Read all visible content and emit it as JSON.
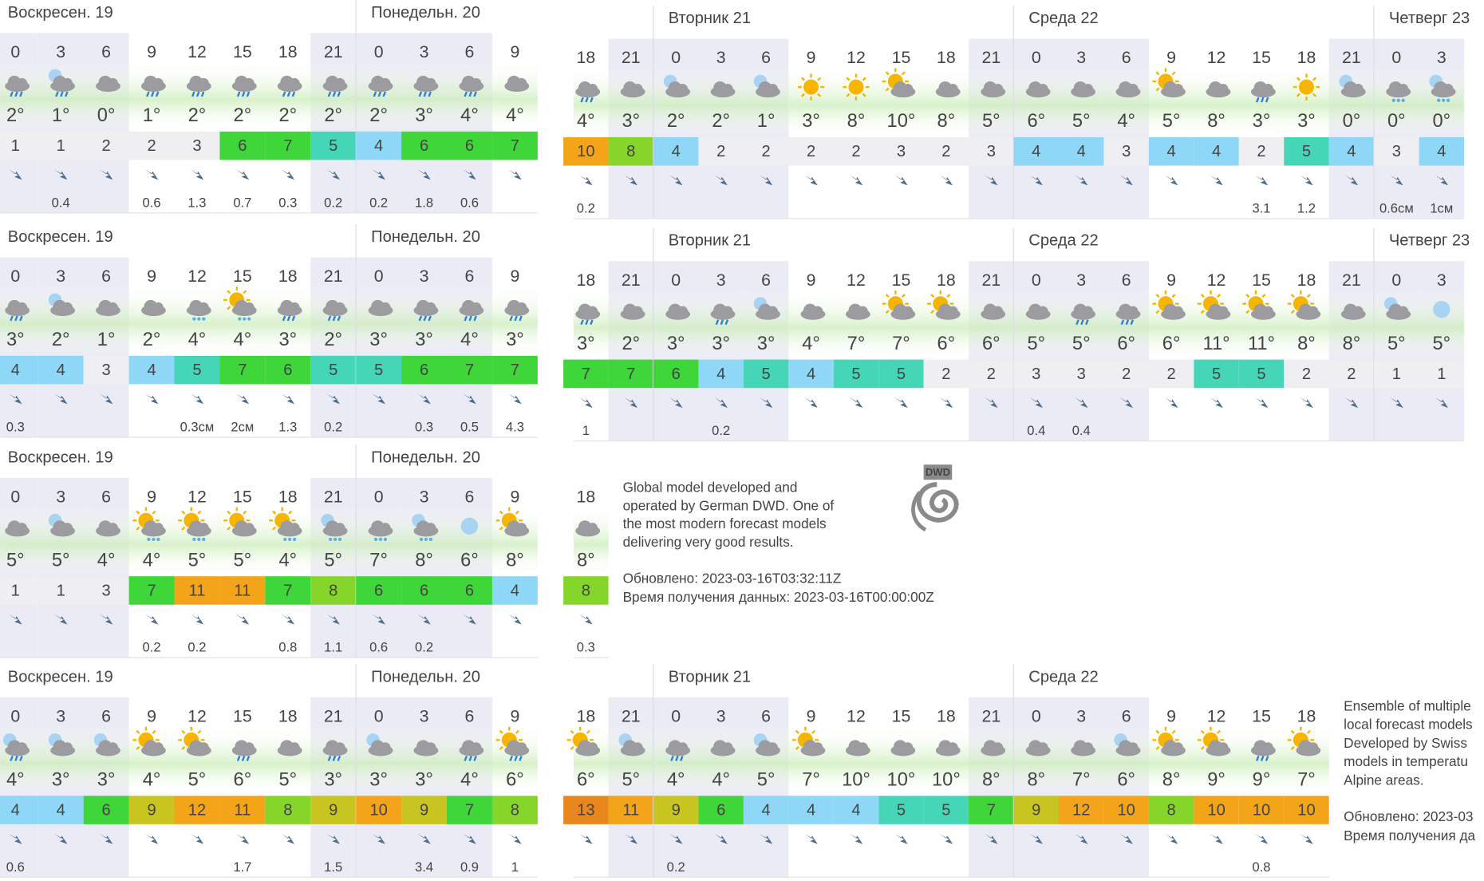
{
  "left_panels": [
    {
      "days": [
        {
          "label": "Воскресен. 19",
          "columns": [
            {
              "hour": 0,
              "temp": "2°",
              "wind": 1,
              "icon": "rain"
            },
            {
              "hour": 3,
              "temp": "1°",
              "wind": 1,
              "precip": 0.4,
              "icon": "moon-rain"
            },
            {
              "hour": 6,
              "temp": "0°",
              "wind": 2,
              "icon": "cloud"
            },
            {
              "hour": 9,
              "temp": "1°",
              "wind": 2,
              "precip": 0.6,
              "icon": "rain"
            },
            {
              "hour": 12,
              "temp": "2°",
              "wind": 3,
              "precip": 1.3,
              "icon": "rain"
            },
            {
              "hour": 15,
              "temp": "2°",
              "wind": 6,
              "precip": 0.7,
              "icon": "rain"
            },
            {
              "hour": 18,
              "temp": "2°",
              "wind": 7,
              "precip": 0.3,
              "icon": "rain"
            },
            {
              "hour": 21,
              "temp": "2°",
              "wind": 5,
              "precip": 0.2,
              "icon": "rain"
            }
          ]
        },
        {
          "label": "Понедельн. 20",
          "columns": [
            {
              "hour": 0,
              "temp": "2°",
              "wind": 4,
              "precip": 0.2,
              "icon": "rain"
            },
            {
              "hour": 3,
              "temp": "3°",
              "wind": 6,
              "precip": 1.8,
              "icon": "rain"
            },
            {
              "hour": 6,
              "temp": "4°",
              "wind": 6,
              "precip": 0.6,
              "icon": "rain"
            },
            {
              "hour": 9,
              "temp": "4°",
              "wind": 7,
              "icon": "cloud"
            }
          ]
        }
      ]
    },
    {
      "days": [
        {
          "label": "Воскресен. 19",
          "columns": [
            {
              "hour": 0,
              "temp": "3°",
              "wind": 4,
              "precip": 0.3,
              "icon": "rain"
            },
            {
              "hour": 3,
              "temp": "2°",
              "wind": 4,
              "icon": "moon-cloud"
            },
            {
              "hour": 6,
              "temp": "1°",
              "wind": 3,
              "icon": "cloud"
            },
            {
              "hour": 9,
              "temp": "2°",
              "wind": 4,
              "icon": "cloud"
            },
            {
              "hour": 12,
              "temp": "4°",
              "wind": 5,
              "precip": {
                "value": 0.3,
                "label": "0.3см"
              },
              "icon": "snow"
            },
            {
              "hour": 15,
              "temp": "4°",
              "wind": 7,
              "precip": {
                "value": 2,
                "label": "2см"
              },
              "icon": "sun-snow"
            },
            {
              "hour": 18,
              "temp": "3°",
              "wind": 6,
              "precip": 1.3,
              "icon": "rain"
            },
            {
              "hour": 21,
              "temp": "2°",
              "wind": 5,
              "precip": 0.2,
              "icon": "rain"
            }
          ]
        },
        {
          "label": "Понедельн. 20",
          "columns": [
            {
              "hour": 0,
              "temp": "3°",
              "wind": 5,
              "icon": "cloud"
            },
            {
              "hour": 3,
              "temp": "3°",
              "wind": 6,
              "precip": 0.3,
              "icon": "rain"
            },
            {
              "hour": 6,
              "temp": "4°",
              "wind": 7,
              "precip": 0.5,
              "icon": "rain"
            },
            {
              "hour": 9,
              "temp": "3°",
              "wind": 7,
              "precip": 4.3,
              "icon": "rain"
            }
          ]
        }
      ]
    },
    {
      "days": [
        {
          "label": "Воскресен. 19",
          "columns": [
            {
              "hour": 0,
              "temp": "5°",
              "wind": 1,
              "icon": "cloud"
            },
            {
              "hour": 3,
              "temp": "5°",
              "wind": 1,
              "icon": "moon-cloud"
            },
            {
              "hour": 6,
              "temp": "4°",
              "wind": 3,
              "icon": "cloud"
            },
            {
              "hour": 9,
              "temp": "4°",
              "wind": 7,
              "precip": 0.2,
              "icon": "sun-snow"
            },
            {
              "hour": 12,
              "temp": "5°",
              "wind": 11,
              "precip": 0.2,
              "icon": "sun-snow"
            },
            {
              "hour": 15,
              "temp": "5°",
              "wind": 11,
              "icon": "sun-cloud"
            },
            {
              "hour": 18,
              "temp": "4°",
              "wind": 7,
              "precip": 0.8,
              "icon": "sun-snow"
            },
            {
              "hour": 21,
              "temp": "5°",
              "wind": 8,
              "precip": 1.1,
              "icon": "moon-snow"
            }
          ]
        },
        {
          "label": "Понедельн. 20",
          "columns": [
            {
              "hour": 0,
              "temp": "7°",
              "wind": 6,
              "precip": 0.6,
              "icon": "snow"
            },
            {
              "hour": 3,
              "temp": "8°",
              "wind": 6,
              "precip": 0.2,
              "icon": "moon-snow"
            },
            {
              "hour": 6,
              "temp": "6°",
              "wind": 6,
              "icon": "moon"
            },
            {
              "hour": 9,
              "temp": "8°",
              "wind": 4,
              "icon": "sun-cloud"
            }
          ]
        }
      ]
    },
    {
      "days": [
        {
          "label": "Воскресен. 19",
          "columns": [
            {
              "hour": 0,
              "temp": "4°",
              "wind": 4,
              "precip": 0.6,
              "icon": "moon-rain"
            },
            {
              "hour": 3,
              "temp": "3°",
              "wind": 4,
              "icon": "moon-cloud"
            },
            {
              "hour": 6,
              "temp": "3°",
              "wind": 6,
              "icon": "moon-cloud"
            },
            {
              "hour": 9,
              "temp": "4°",
              "wind": 9,
              "icon": "sun-cloud"
            },
            {
              "hour": 12,
              "temp": "5°",
              "wind": 12,
              "icon": "sun-cloud"
            },
            {
              "hour": 15,
              "temp": "6°",
              "wind": 11,
              "precip": 1.7,
              "icon": "rain"
            },
            {
              "hour": 18,
              "temp": "5°",
              "wind": 8,
              "icon": "cloud"
            },
            {
              "hour": 21,
              "temp": "3°",
              "wind": 9,
              "precip": 1.5,
              "icon": "rain"
            }
          ]
        },
        {
          "label": "Понедельн. 20",
          "columns": [
            {
              "hour": 0,
              "temp": "3°",
              "wind": 10,
              "icon": "moon-cloud"
            },
            {
              "hour": 3,
              "temp": "3°",
              "wind": 9,
              "precip": 3.4,
              "icon": "cloud"
            },
            {
              "hour": 6,
              "temp": "4°",
              "wind": 7,
              "precip": 0.9,
              "icon": "rain"
            },
            {
              "hour": 9,
              "temp": "6°",
              "wind": 8,
              "precip": 1,
              "icon": "sun-rain"
            }
          ]
        }
      ]
    }
  ],
  "right_panels": [
    {
      "days": [
        {
          "label": null,
          "columns": [
            {
              "hour": 18,
              "temp": "4°",
              "wind": 10,
              "precip": 0.2,
              "icon": "rain"
            },
            {
              "hour": 21,
              "temp": "3°",
              "wind": 8,
              "icon": "cloud"
            }
          ]
        },
        {
          "label": "Вторник 21",
          "columns": [
            {
              "hour": 0,
              "temp": "2°",
              "wind": 4,
              "icon": "moon-cloud"
            },
            {
              "hour": 3,
              "temp": "2°",
              "wind": 2,
              "icon": "cloud"
            },
            {
              "hour": 6,
              "temp": "1°",
              "wind": 2,
              "icon": "moon-cloud"
            },
            {
              "hour": 9,
              "temp": "3°",
              "wind": 2,
              "icon": "sun"
            },
            {
              "hour": 12,
              "temp": "8°",
              "wind": 2,
              "icon": "sun"
            },
            {
              "hour": 15,
              "temp": "10°",
              "wind": 3,
              "icon": "sun-cloud"
            },
            {
              "hour": 18,
              "temp": "8°",
              "wind": 2,
              "icon": "cloud"
            },
            {
              "hour": 21,
              "temp": "5°",
              "wind": 3,
              "icon": "cloud"
            }
          ]
        },
        {
          "label": "Среда 22",
          "columns": [
            {
              "hour": 0,
              "temp": "6°",
              "wind": 4,
              "icon": "cloud"
            },
            {
              "hour": 3,
              "temp": "5°",
              "wind": 4,
              "icon": "cloud"
            },
            {
              "hour": 6,
              "temp": "4°",
              "wind": 3,
              "icon": "cloud"
            },
            {
              "hour": 9,
              "temp": "5°",
              "wind": 4,
              "icon": "sun-cloud"
            },
            {
              "hour": 12,
              "temp": "8°",
              "wind": 4,
              "icon": "cloud"
            },
            {
              "hour": 15,
              "temp": "3°",
              "wind": 2,
              "precip": 3.1,
              "icon": "rain"
            },
            {
              "hour": 18,
              "temp": "3°",
              "wind": 5,
              "precip": 1.2,
              "icon": "sun"
            },
            {
              "hour": 21,
              "temp": "0°",
              "wind": 4,
              "icon": "moon-cloud"
            }
          ]
        },
        {
          "label": "Четверг 23",
          "columns": [
            {
              "hour": 0,
              "temp": "0°",
              "wind": 3,
              "precip": {
                "value": 0.6,
                "label": "0.6см"
              },
              "icon": "snow"
            },
            {
              "hour": 3,
              "temp": "0°",
              "wind": 4,
              "precip": {
                "value": 1,
                "label": "1см"
              },
              "icon": "moon-snow"
            }
          ]
        }
      ]
    },
    {
      "days": [
        {
          "label": null,
          "columns": [
            {
              "hour": 18,
              "temp": "3°",
              "wind": 7,
              "precip": 1,
              "icon": "rain"
            },
            {
              "hour": 21,
              "temp": "2°",
              "wind": 7,
              "icon": "cloud"
            }
          ]
        },
        {
          "label": "Вторник 21",
          "columns": [
            {
              "hour": 0,
              "temp": "3°",
              "wind": 6,
              "icon": "cloud"
            },
            {
              "hour": 3,
              "temp": "3°",
              "wind": 4,
              "precip": 0.2,
              "icon": "rain"
            },
            {
              "hour": 6,
              "temp": "3°",
              "wind": 5,
              "icon": "moon-cloud"
            },
            {
              "hour": 9,
              "temp": "4°",
              "wind": 4,
              "icon": "cloud"
            },
            {
              "hour": 12,
              "temp": "7°",
              "wind": 5,
              "icon": "cloud"
            },
            {
              "hour": 15,
              "temp": "7°",
              "wind": 5,
              "icon": "sun-cloud"
            },
            {
              "hour": 18,
              "temp": "6°",
              "wind": 2,
              "icon": "sun-cloud"
            },
            {
              "hour": 21,
              "temp": "6°",
              "wind": 2,
              "icon": "cloud"
            }
          ]
        },
        {
          "label": "Среда 22",
          "columns": [
            {
              "hour": 0,
              "temp": "5°",
              "wind": 3,
              "precip": 0.4,
              "icon": "cloud"
            },
            {
              "hour": 3,
              "temp": "5°",
              "wind": 3,
              "precip": 0.4,
              "icon": "rain"
            },
            {
              "hour": 6,
              "temp": "6°",
              "wind": 2,
              "icon": "rain"
            },
            {
              "hour": 9,
              "temp": "6°",
              "wind": 2,
              "icon": "sun-cloud"
            },
            {
              "hour": 12,
              "temp": "11°",
              "wind": 5,
              "icon": "sun-cloud"
            },
            {
              "hour": 15,
              "temp": "11°",
              "wind": 5,
              "icon": "sun-cloud"
            },
            {
              "hour": 18,
              "temp": "8°",
              "wind": 2,
              "icon": "sun-cloud"
            },
            {
              "hour": 21,
              "temp": "8°",
              "wind": 2,
              "icon": "cloud"
            }
          ]
        },
        {
          "label": "Четверг 23",
          "columns": [
            {
              "hour": 0,
              "temp": "5°",
              "wind": 1,
              "icon": "moon-cloud"
            },
            {
              "hour": 3,
              "temp": "5°",
              "wind": 1,
              "icon": "moon"
            }
          ]
        }
      ]
    },
    {
      "days": [
        {
          "label": null,
          "columns": [
            {
              "hour": 18,
              "temp": "8°",
              "wind": 8,
              "precip": 0.3,
              "icon": "cloud"
            }
          ]
        }
      ]
    },
    {
      "days": [
        {
          "label": null,
          "columns": [
            {
              "hour": 18,
              "temp": "6°",
              "wind": 13,
              "icon": "sun-cloud"
            },
            {
              "hour": 21,
              "temp": "5°",
              "wind": 11,
              "icon": "moon-cloud"
            }
          ]
        },
        {
          "label": "Вторник 21",
          "columns": [
            {
              "hour": 0,
              "temp": "4°",
              "wind": 9,
              "precip": 0.2,
              "icon": "rain"
            },
            {
              "hour": 3,
              "temp": "4°",
              "wind": 6,
              "icon": "cloud"
            },
            {
              "hour": 6,
              "temp": "5°",
              "wind": 4,
              "icon": "moon-cloud"
            },
            {
              "hour": 9,
              "temp": "7°",
              "wind": 4,
              "icon": "sun-cloud"
            },
            {
              "hour": 12,
              "temp": "10°",
              "wind": 4,
              "icon": "cloud"
            },
            {
              "hour": 15,
              "temp": "10°",
              "wind": 5,
              "icon": "cloud"
            },
            {
              "hour": 18,
              "temp": "10°",
              "wind": 5,
              "icon": "cloud"
            },
            {
              "hour": 21,
              "temp": "8°",
              "wind": 7,
              "icon": "cloud"
            }
          ]
        },
        {
          "label": "Среда 22",
          "columns": [
            {
              "hour": 0,
              "temp": "8°",
              "wind": 9,
              "icon": "cloud"
            },
            {
              "hour": 3,
              "temp": "7°",
              "wind": 12,
              "icon": "cloud"
            },
            {
              "hour": 6,
              "temp": "6°",
              "wind": 10,
              "icon": "moon-cloud"
            },
            {
              "hour": 9,
              "temp": "8°",
              "wind": 8,
              "icon": "sun-cloud"
            },
            {
              "hour": 12,
              "temp": "9°",
              "wind": 10,
              "icon": "sun-cloud"
            },
            {
              "hour": 15,
              "temp": "9°",
              "wind": 10,
              "precip": 0.8,
              "icon": "rain"
            },
            {
              "hour": 18,
              "temp": "7°",
              "wind": 10,
              "icon": "sun-cloud"
            }
          ]
        }
      ]
    }
  ],
  "notes": {
    "dwd": {
      "logo": "DWD",
      "lines": [
        "Global model developed and",
        "operated by German DWD. One of",
        "the most modern forecast models",
        "delivering very good results."
      ],
      "updated": "Обновлено: 2023-03-16T03:32:11Z",
      "received": "Время получения данных: 2023-03-16T00:00:00Z"
    },
    "ensemble": {
      "lines": [
        "Ensemble of multiple",
        "local forecast models",
        "Developed by Swiss",
        "models in temperatu",
        "Alpine areas."
      ],
      "updated": "Обновлено: 2023-03",
      "received": "Время получения да"
    }
  }
}
